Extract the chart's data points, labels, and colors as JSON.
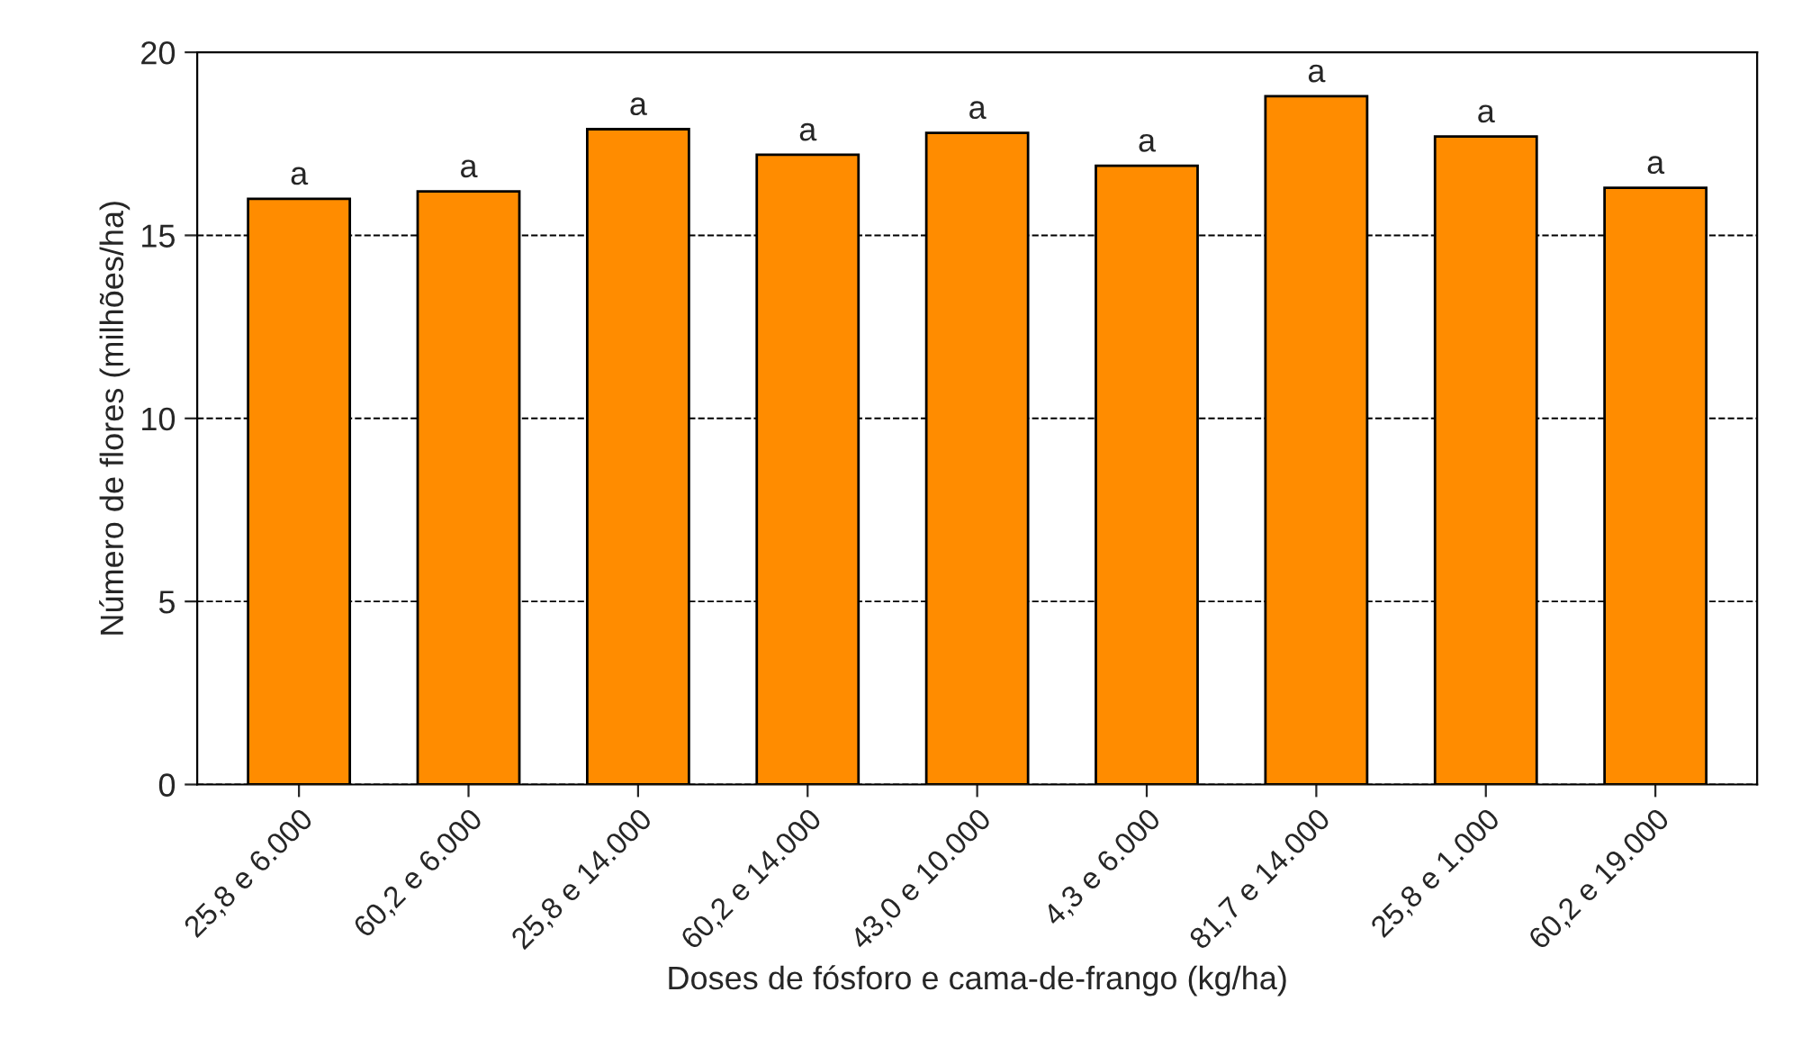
{
  "chart_data": {
    "type": "bar",
    "xlabel": "Doses de fósforo e cama-de-frango (kg/ha)",
    "ylabel": "Número de flores (milhões/ha)",
    "categories": [
      "25,8 e 6.000",
      "60,2 e 6.000",
      "25,8 e 14.000",
      "60,2 e 14.000",
      "43,0 e 10.000",
      "4,3 e 6.000",
      "81,7 e 14.000",
      "25,8 e 1.000",
      "60,2 e 19.000"
    ],
    "values": [
      16.0,
      16.2,
      17.9,
      17.2,
      17.8,
      16.9,
      18.8,
      17.7,
      16.3
    ],
    "value_labels": [
      "a",
      "a",
      "a",
      "a",
      "a",
      "a",
      "a",
      "a",
      "a"
    ],
    "color": "#ff8c00",
    "ylim": [
      0,
      20
    ],
    "yticks": [
      0,
      5,
      10,
      15,
      20
    ],
    "grid": "y",
    "line_style": "dashed"
  }
}
